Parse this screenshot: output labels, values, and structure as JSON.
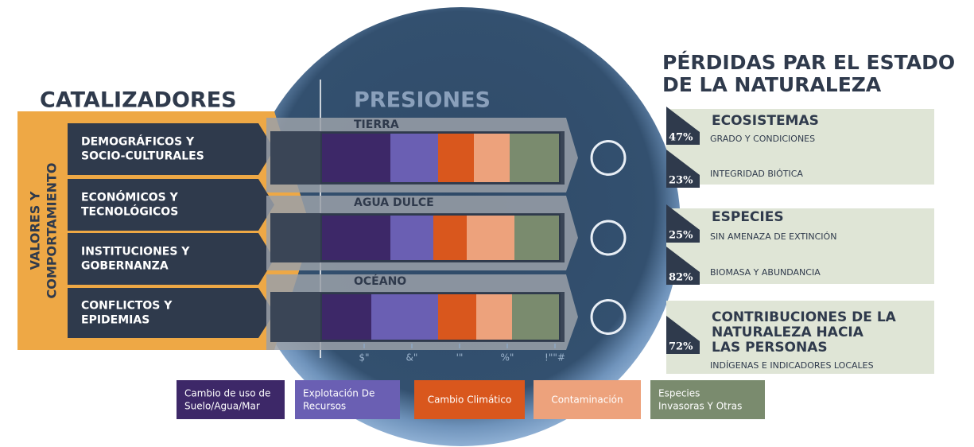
{
  "left_title": "CATALIZADORES",
  "side_label": [
    "VALORES Y",
    "COMPORTAMIENTO"
  ],
  "drivers": [
    [
      "DEMOGRÁFICOS Y",
      "SOCIO-CULTURALES"
    ],
    [
      "ECONÓMICOS Y",
      "TECNOLÓGICOS"
    ],
    [
      "INSTITUCIONES Y",
      "GOBERNANZA"
    ],
    [
      "CONFLICTOS Y",
      "EPIDEMIAS"
    ]
  ],
  "center_title": "PRESIONES",
  "pressures": [
    {
      "name": "TIERRA",
      "values": [
        29,
        20,
        15,
        15,
        21
      ]
    },
    {
      "name": "AGUA DULCE",
      "values": [
        29,
        18,
        14,
        20,
        19
      ]
    },
    {
      "name": "OCÉANO",
      "values": [
        21,
        28,
        16,
        15,
        20
      ]
    }
  ],
  "xlim": [
    0,
    100
  ],
  "xticks": [
    {
      "value": 20,
      "label": "$\""
    },
    {
      "value": 40,
      "label": "&\""
    },
    {
      "value": 60,
      "label": "'\""
    },
    {
      "value": 80,
      "label": "%\""
    },
    {
      "value": 100,
      "label": "!\"\"#"
    }
  ],
  "legend": [
    {
      "lines": [
        "Cambio de uso de",
        "Suelo/Agua/Mar"
      ],
      "color": "#3d2868"
    },
    {
      "lines": [
        "Explotación De",
        "Recursos"
      ],
      "color": "#6a5fb3"
    },
    {
      "lines": [
        "Cambio Climático"
      ],
      "color": "#d9571d"
    },
    {
      "lines": [
        "Contaminación"
      ],
      "color": "#eda27c"
    },
    {
      "lines": [
        "Especies",
        "Invasoras Y Otras"
      ],
      "color": "#7a8b6e"
    }
  ],
  "right_title": [
    "PÉRDIDAS PAR EL ESTADO",
    "DE LA NATURALEZA"
  ],
  "losses": [
    {
      "heading": [
        "ECOSISTEMAS"
      ],
      "items": [
        {
          "pct": "47%",
          "label": "GRADO Y CONDICIONES"
        },
        {
          "pct": "23%",
          "label": "INTEGRIDAD BIÓTICA"
        }
      ]
    },
    {
      "heading": [
        "ESPECIES"
      ],
      "items": [
        {
          "pct": "25%",
          "label": "SIN AMENAZA DE EXTINCIÓN"
        },
        {
          "pct": "82%",
          "label": "BIOMASA Y ABUNDANCIA"
        }
      ]
    },
    {
      "heading": [
        "CONTRIBUCIONES DE LA",
        "NATURALEZA HACIA",
        "LAS PERSONAS"
      ],
      "items": [
        {
          "pct": "72%",
          "label": "INDÍGENAS E INDICADORES LOCALES"
        }
      ]
    }
  ]
}
